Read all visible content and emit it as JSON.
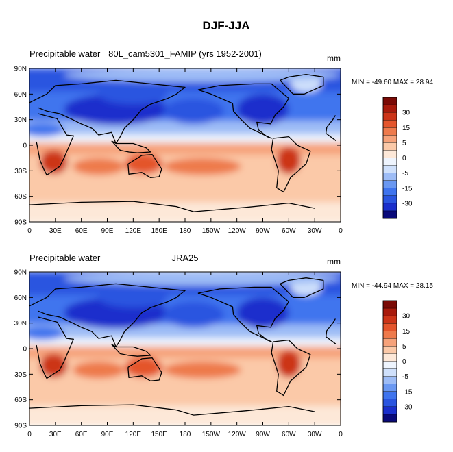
{
  "title": "DJF-JJA",
  "colors": {
    "scale": [
      "#0a0a7a",
      "#1a2fcc",
      "#2a55e0",
      "#3f74ee",
      "#6a98f2",
      "#9dbcf6",
      "#cfe0fb",
      "#eef4fd",
      "#fde8d8",
      "#fbc9a8",
      "#f6a27a",
      "#ee7a4c",
      "#e4552c",
      "#cc3418",
      "#a81a0c",
      "#7a0a06"
    ],
    "coast": "#000000"
  },
  "x_ticks": [
    "0",
    "30E",
    "60E",
    "90E",
    "120E",
    "150E",
    "180",
    "150W",
    "120W",
    "90W",
    "60W",
    "30W",
    "0"
  ],
  "y_ticks": [
    "90N",
    "60N",
    "30N",
    "0",
    "30S",
    "60S",
    "90S"
  ],
  "colorbar_labels": [
    "30",
    "15",
    "5",
    "0",
    "-5",
    "-15",
    "-30"
  ],
  "panels": [
    {
      "left_title": "Precipitable water",
      "center_title": "80L_cam5301_FAMIP (yrs 1952-2001)",
      "units": "mm",
      "stats": "MIN = -49.60 MAX =  28.94"
    },
    {
      "left_title": "Precipitable water",
      "center_title": "JRA25",
      "units": "mm",
      "stats": "MIN = -44.94 MAX =  28.15"
    }
  ]
}
